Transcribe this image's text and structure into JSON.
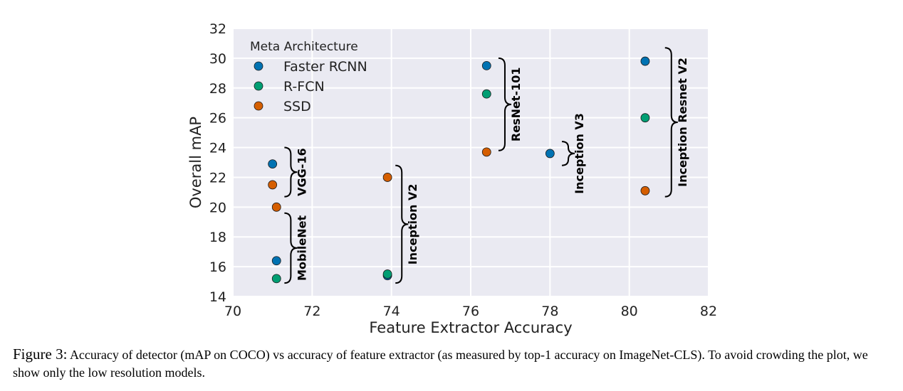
{
  "chart_data": {
    "type": "scatter",
    "xlabel": "Feature Extractor Accuracy",
    "ylabel": "Overall mAP",
    "xlim": [
      70,
      82
    ],
    "ylim": [
      14,
      32
    ],
    "xticks": [
      70,
      72,
      74,
      76,
      78,
      80,
      82
    ],
    "yticks": [
      14,
      16,
      18,
      20,
      22,
      24,
      26,
      28,
      30,
      32
    ],
    "grid": true,
    "background": "#eaeaf2",
    "legend": {
      "title": "Meta Architecture",
      "placement": "top-left"
    },
    "series": [
      {
        "name": "Faster RCNN",
        "color": "#0072b2",
        "points": [
          [
            71.0,
            22.9
          ],
          [
            71.1,
            16.4
          ],
          [
            73.9,
            15.4
          ],
          [
            76.4,
            29.5
          ],
          [
            78.0,
            23.6
          ],
          [
            80.4,
            29.8
          ]
        ]
      },
      {
        "name": "R-FCN",
        "color": "#009e73",
        "points": [
          [
            71.1,
            15.2
          ],
          [
            73.9,
            15.5
          ],
          [
            76.4,
            27.6
          ],
          [
            80.4,
            26.0
          ]
        ]
      },
      {
        "name": "SSD",
        "color": "#d55e00",
        "points": [
          [
            71.0,
            21.5
          ],
          [
            71.1,
            20.0
          ],
          [
            73.9,
            22.0
          ],
          [
            76.4,
            23.7
          ],
          [
            80.4,
            21.1
          ]
        ]
      }
    ],
    "annotations": [
      {
        "label": "VGG-16",
        "x": 71.3,
        "y_range": [
          20.7,
          24.0
        ]
      },
      {
        "label": "MobileNet",
        "x": 71.3,
        "y_range": [
          14.9,
          19.6
        ]
      },
      {
        "label": "Inception V2",
        "x": 74.1,
        "y_range": [
          14.9,
          22.8
        ]
      },
      {
        "label": "ResNet-101",
        "x": 76.7,
        "y_range": [
          23.8,
          30.0
        ]
      },
      {
        "label": "Inception V3",
        "x": 78.3,
        "y_range": [
          22.8,
          24.4
        ]
      },
      {
        "label": "Inception Resnet V2",
        "x": 80.9,
        "y_range": [
          20.7,
          30.7
        ]
      }
    ]
  },
  "caption": {
    "label": "Figure 3:",
    "text": "Accuracy of detector (mAP on COCO) vs accuracy of feature extractor (as measured by top-1 accuracy on ImageNet-CLS). To avoid crowding the plot, we show only the low resolution models."
  }
}
